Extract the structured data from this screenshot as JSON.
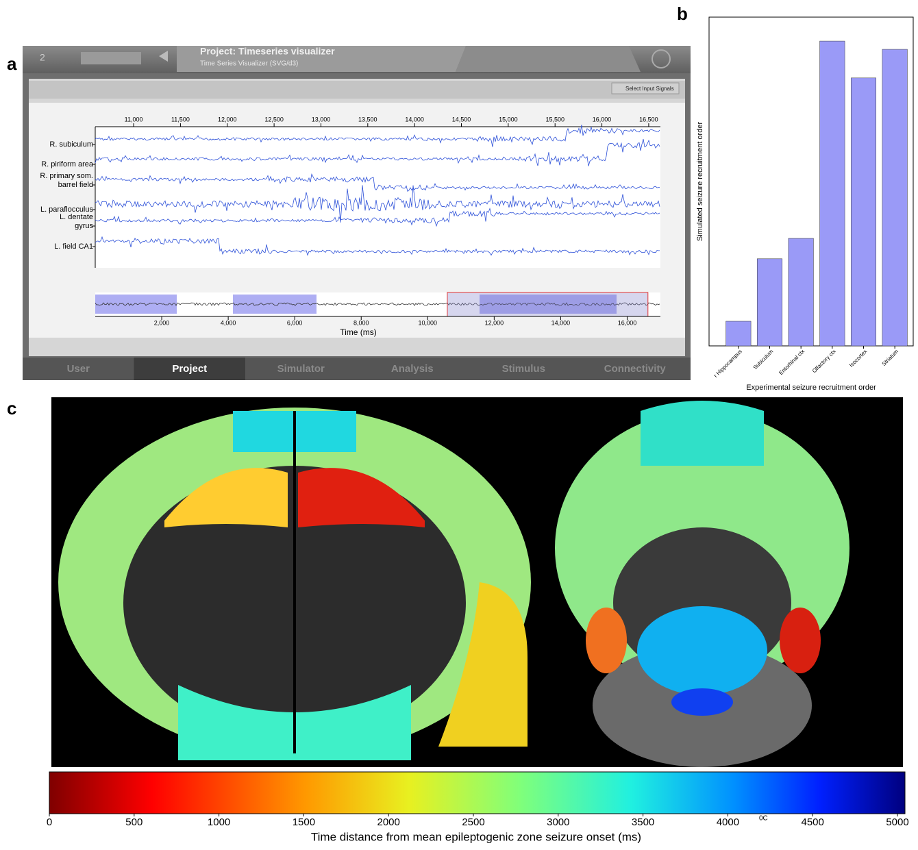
{
  "panel_labels": [
    "a",
    "b",
    "c"
  ],
  "app": {
    "workspace": "2",
    "project_title": "Project: Timeseries visualizer",
    "subtitle": "Time Series Visualizer (SVG/d3)",
    "button": "Select Input Signals",
    "tabs": [
      "User",
      "Project",
      "Simulator",
      "Analysis",
      "Stimulus",
      "Connectivity"
    ],
    "active_tab": 1
  },
  "timeseries": {
    "channels": [
      [
        "R. subiculum"
      ],
      [
        "R. piriform area"
      ],
      [
        "R. primary som.",
        "barrel field"
      ],
      [
        "L. paraflocculus"
      ],
      [
        "L. dentate",
        "gyrus"
      ],
      [
        "L. field CA1"
      ]
    ],
    "xlim": [
      10590,
      16625
    ],
    "xticks": [
      {
        "value": 11000,
        "label": "11,000"
      },
      {
        "value": 11500,
        "label": "11,500"
      },
      {
        "value": 12000,
        "label": "12,000"
      },
      {
        "value": 12500,
        "label": "12,500"
      },
      {
        "value": 13000,
        "label": "13,000"
      },
      {
        "value": 13500,
        "label": "13,500"
      },
      {
        "value": 14000,
        "label": "14,000"
      },
      {
        "value": 14500,
        "label": "14,500"
      },
      {
        "value": 15000,
        "label": "15,000"
      },
      {
        "value": 15500,
        "label": "15,500"
      },
      {
        "value": 16000,
        "label": "16,000"
      },
      {
        "value": 16500,
        "label": "16,500"
      }
    ],
    "overview_xlim": [
      0,
      17000
    ],
    "overview_xticks": [
      {
        "value": 2000,
        "label": "2,000"
      },
      {
        "value": 4000,
        "label": "4,000"
      },
      {
        "value": 6000,
        "label": "6,000"
      },
      {
        "value": 8000,
        "label": "8,000"
      },
      {
        "value": 10000,
        "label": "10,000"
      },
      {
        "value": 12000,
        "label": "12,000"
      },
      {
        "value": 14000,
        "label": "14,000"
      },
      {
        "value": 16000,
        "label": "16,000"
      }
    ],
    "xlabel": "Time (ms)",
    "color": "#2b4fd8"
  },
  "chart_data": {
    "type": "bar",
    "categories": [
      "r Hippocampus",
      "Subiculum",
      "Entorhinal ctx",
      "Olfactory ctx",
      "Isocortex",
      "Striatum"
    ],
    "values": [
      0.075,
      0.265,
      0.327,
      0.927,
      0.815,
      0.902
    ],
    "ylim": [
      0,
      1
    ],
    "color": "#9a9af7",
    "xlabel": "Experimental seizure recruitment order",
    "ylabel": "Simulated seizure recruitment order"
  },
  "colorbar": {
    "lim": [
      0,
      5000
    ],
    "ticks": [
      0,
      500,
      1000,
      1500,
      2000,
      2500,
      3000,
      3500,
      4000,
      4500,
      5000
    ],
    "label": "Time distance from mean epileptogenic zone seizure onset (ms)",
    "annotation": "0C"
  }
}
